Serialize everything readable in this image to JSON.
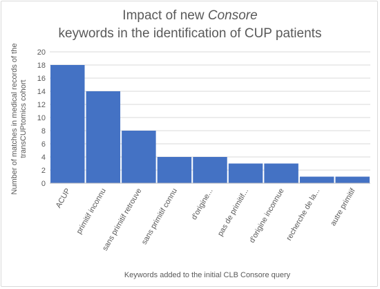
{
  "chart_data": {
    "type": "bar",
    "title_parts": [
      "Impact of new ",
      "Consore",
      " keywords in the identification of CUP patients"
    ],
    "xlabel": "Keywords added to the initial CLB Consore query",
    "ylabel_lines": [
      "Number of matches in medical records of the",
      "transCUPtomics cohort"
    ],
    "categories": [
      "ACUP",
      "primitif inconnu",
      "sans primitif retrouve",
      "sans primitif connu",
      "d'origine...",
      "pas de primitif...",
      "d'origine inconnue",
      "recherche de la...",
      "autre primitif"
    ],
    "values": [
      18,
      14,
      8,
      4,
      4,
      3,
      3,
      1,
      1
    ],
    "ylim": [
      0,
      20
    ],
    "ytick_step": 2,
    "grid": true,
    "bar_color": "#4472c4",
    "grid_color": "#d9d9d9",
    "axis_color": "#bfbfbf",
    "text_color": "#595959"
  }
}
